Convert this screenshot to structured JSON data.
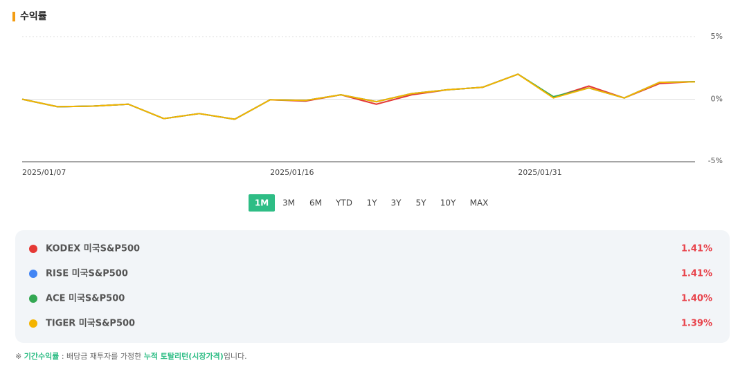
{
  "chart_data": {
    "type": "line",
    "title": "수익률",
    "categories": [
      "2025/01/07",
      null,
      null,
      null,
      null,
      null,
      null,
      "2025/01/16",
      null,
      null,
      null,
      null,
      null,
      null,
      "2025/01/31",
      null,
      null,
      null,
      null,
      null
    ],
    "ylim": [
      -5,
      5
    ],
    "yticks": [
      {
        "value": 5,
        "label": "5%"
      },
      {
        "value": 0,
        "label": "0%"
      },
      {
        "value": -5,
        "label": "-5%"
      }
    ],
    "series": [
      {
        "name": "KODEX 미국S&P500",
        "color": "#e53935",
        "return": "1.41%",
        "values": [
          0,
          -0.6,
          -0.55,
          -0.4,
          -1.55,
          -1.15,
          -1.6,
          -0.05,
          -0.15,
          0.35,
          -0.4,
          0.35,
          0.75,
          0.95,
          2.0,
          0.15,
          1.05,
          0.1,
          1.25,
          1.41
        ]
      },
      {
        "name": "RISE 미국S&P500",
        "color": "#4285f4",
        "return": "1.41%",
        "values": [
          0,
          -0.6,
          -0.55,
          -0.4,
          -1.55,
          -1.15,
          -1.6,
          -0.05,
          -0.1,
          0.35,
          -0.2,
          0.45,
          0.75,
          0.95,
          2.0,
          0.15,
          0.9,
          0.1,
          1.35,
          1.41
        ]
      },
      {
        "name": "ACE 미국S&P500",
        "color": "#34a853",
        "return": "1.40%",
        "values": [
          0,
          -0.6,
          -0.55,
          -0.4,
          -1.55,
          -1.15,
          -1.6,
          -0.05,
          -0.1,
          0.35,
          -0.2,
          0.45,
          0.75,
          0.95,
          2.0,
          0.2,
          0.9,
          0.1,
          1.35,
          1.4
        ]
      },
      {
        "name": "TIGER 미국S&P500",
        "color": "#f4b400",
        "return": "1.39%",
        "values": [
          0,
          -0.6,
          -0.55,
          -0.4,
          -1.55,
          -1.15,
          -1.6,
          -0.05,
          -0.1,
          0.35,
          -0.2,
          0.45,
          0.75,
          0.95,
          2.0,
          0.1,
          0.9,
          0.1,
          1.35,
          1.39
        ]
      }
    ],
    "periods": [
      "1M",
      "3M",
      "6M",
      "YTD",
      "1Y",
      "3Y",
      "5Y",
      "10Y",
      "MAX"
    ],
    "active_period": 0
  },
  "footnote": {
    "mark": "※",
    "term": "기간수익률",
    "text1": " : 배당금 재투자를 가정한 ",
    "term2": "누적 토탈리턴(시장가격)",
    "text2": "입니다."
  }
}
